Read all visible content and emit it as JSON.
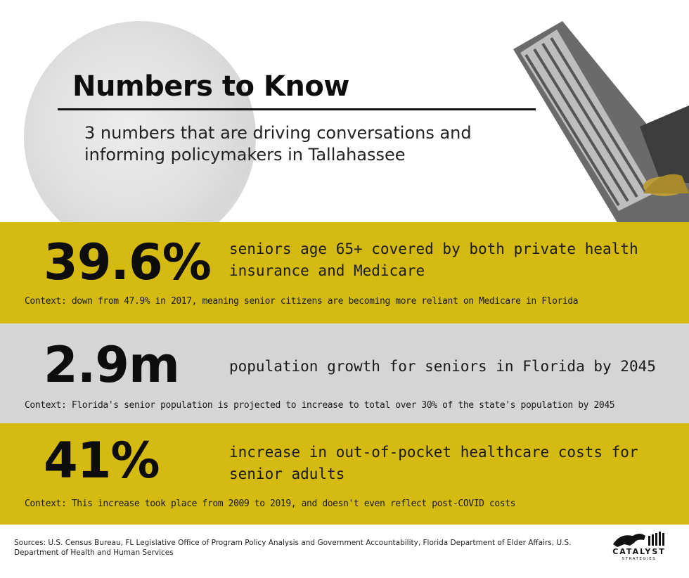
{
  "header": {
    "title": "Numbers to Know",
    "subtitle": "3 numbers that are driving conversations and informing policymakers in Tallahassee"
  },
  "stats": [
    {
      "value": "39.6%",
      "description": "seniors age 65+ covered by both private health insurance and Medicare",
      "context": "Context: down from 47.9% in 2017, meaning senior citizens are becoming more reliant on Medicare in Florida"
    },
    {
      "value": "2.9m",
      "description": "population growth for seniors in Florida by 2045",
      "context": "Context: Florida's senior population is projected to increase to total over 30% of the state's population by 2045"
    },
    {
      "value": "41%",
      "description": "increase in out-of-pocket healthcare costs for senior adults",
      "context": "Context: This increase took place from 2009 to 2019, and doesn't even reflect post-COVID costs"
    }
  ],
  "footer": {
    "sources": "Sources: U.S. Census Bureau, FL Legislative Office of Program Policy Analysis and Government Accountability, Florida Department of Elder Affairs, U.S. Department of Health and Human Services",
    "logo_name": "CATALYST",
    "logo_sub": "STRATEGIES"
  },
  "colors": {
    "yellow_band": "#d4ba11",
    "gray_band": "#d5d5d5",
    "text": "#111111"
  },
  "icons": {
    "header_image": "capitol-tower-icon",
    "logo_icon": "bull-logo-icon"
  }
}
